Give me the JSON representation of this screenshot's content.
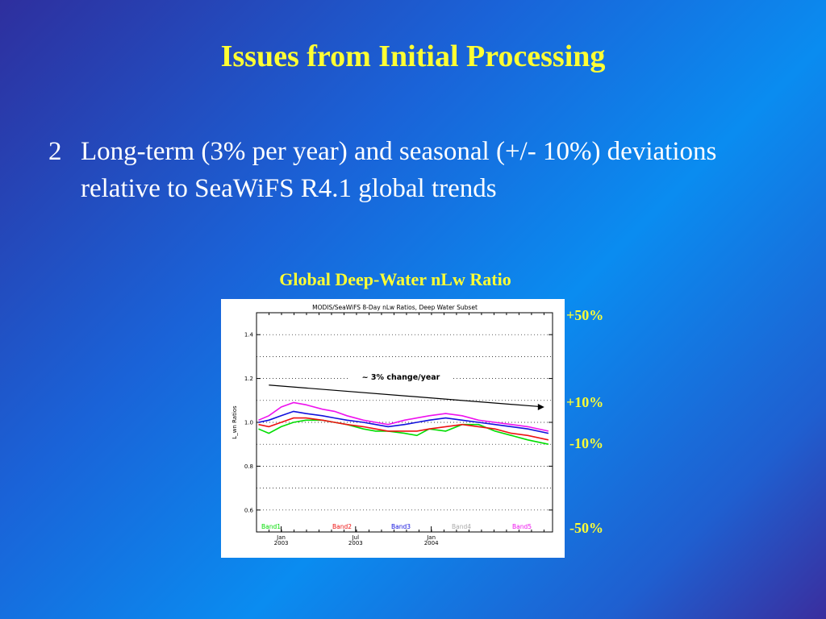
{
  "slide": {
    "title": "Issues from Initial Processing",
    "bullet_number": "2",
    "bullet_text": "Long-term (3% per year) and seasonal (+/- 10%) deviations relative to SeaWiFS R4.1 global trends"
  },
  "figure": {
    "caption": "Global Deep-Water nLw Ratio",
    "percent_labels": [
      "+50%",
      "+10%",
      "-10%",
      "-50%"
    ]
  },
  "chart_data": {
    "type": "line",
    "title": "MODIS/SeaWiFS 8-Day nLw Ratios, Deep Water Subset",
    "ylabel": "L_wn Ratios",
    "xlabel": "",
    "ylim": [
      0.5,
      1.5
    ],
    "yticks": [
      "1.4",
      "1.2",
      "1.0",
      "0.8",
      "0.6"
    ],
    "ytick_values": [
      1.4,
      1.2,
      1.0,
      0.8,
      0.6
    ],
    "x_tick_labels": [
      [
        "Jan",
        "2003"
      ],
      [
        "Jul",
        "2003"
      ],
      [
        "Jan",
        "2004"
      ]
    ],
    "x_range_days": [
      -60,
      660
    ],
    "x_tick_days": [
      0,
      181,
      365
    ],
    "grid": true,
    "annotation": "~ 3% change/year",
    "trend_arrow": {
      "x": [
        -30,
        640
      ],
      "y": [
        1.17,
        1.07
      ]
    },
    "series": [
      {
        "name": "Band1",
        "color": "#00dd00",
        "x": [
          -55,
          -30,
          0,
          30,
          60,
          100,
          130,
          160,
          200,
          230,
          260,
          300,
          330,
          360,
          400,
          440,
          480,
          520,
          560,
          600,
          650
        ],
        "values": [
          0.97,
          0.95,
          0.98,
          1.0,
          1.01,
          1.01,
          1.0,
          0.99,
          0.97,
          0.96,
          0.96,
          0.95,
          0.94,
          0.97,
          0.96,
          0.99,
          0.99,
          0.96,
          0.94,
          0.92,
          0.9
        ]
      },
      {
        "name": "Band2",
        "color": "#ee1111",
        "x": [
          -55,
          -30,
          0,
          30,
          60,
          100,
          130,
          160,
          200,
          230,
          260,
          300,
          330,
          360,
          400,
          440,
          480,
          520,
          560,
          600,
          650
        ],
        "values": [
          0.99,
          0.98,
          1.0,
          1.02,
          1.02,
          1.01,
          1.0,
          0.99,
          0.98,
          0.97,
          0.96,
          0.96,
          0.96,
          0.97,
          0.98,
          0.99,
          0.98,
          0.97,
          0.95,
          0.94,
          0.92
        ]
      },
      {
        "name": "Band3",
        "color": "#1111dd",
        "x": [
          -55,
          -30,
          0,
          30,
          60,
          100,
          130,
          160,
          200,
          230,
          260,
          300,
          330,
          360,
          400,
          440,
          480,
          520,
          560,
          600,
          650
        ],
        "values": [
          1.0,
          1.01,
          1.03,
          1.05,
          1.04,
          1.03,
          1.02,
          1.01,
          1.0,
          0.99,
          0.98,
          0.99,
          1.0,
          1.01,
          1.02,
          1.01,
          1.0,
          0.99,
          0.98,
          0.97,
          0.95
        ]
      },
      {
        "name": "Band4",
        "color": "#aaaaaa",
        "x": [],
        "values": []
      },
      {
        "name": "Band5",
        "color": "#ee11ee",
        "x": [
          -55,
          -30,
          0,
          30,
          60,
          100,
          130,
          160,
          200,
          230,
          260,
          300,
          330,
          360,
          400,
          440,
          480,
          520,
          560,
          600,
          650
        ],
        "values": [
          1.01,
          1.03,
          1.07,
          1.09,
          1.08,
          1.06,
          1.05,
          1.03,
          1.01,
          1.0,
          0.99,
          1.01,
          1.02,
          1.03,
          1.04,
          1.03,
          1.01,
          1.0,
          0.99,
          0.98,
          0.96
        ]
      }
    ]
  }
}
